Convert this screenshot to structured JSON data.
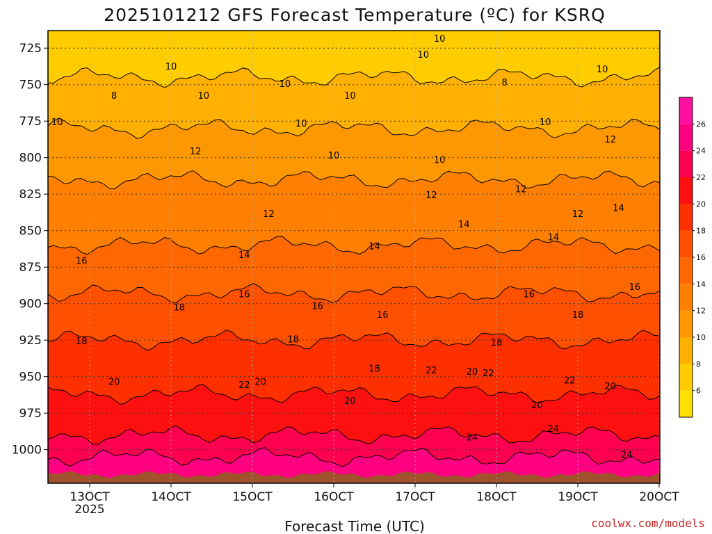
{
  "chart_data": {
    "type": "heatmap",
    "title": "2025101212 GFS Forecast Temperature (ºC) for KSRQ",
    "xlabel": "Forecast Time (UTC)",
    "ylabel": "",
    "x_ticks": [
      "13OCT",
      "14OCT",
      "15OCT",
      "16OCT",
      "17OCT",
      "18OCT",
      "19OCT",
      "20OCT"
    ],
    "x_year_label": "2025",
    "y_ticks": [
      725,
      750,
      775,
      800,
      825,
      850,
      875,
      900,
      925,
      950,
      975,
      1000
    ],
    "y_range_hpa": [
      713,
      1023
    ],
    "y_scale": "pressure (decreasing upward)",
    "grid": "on (dotted)",
    "colorbar": {
      "placement": "right",
      "tick_labels": [
        "6",
        "8",
        "10",
        "12",
        "14",
        "16",
        "18",
        "20",
        "22",
        "24",
        "26"
      ],
      "levels": [
        4,
        6,
        8,
        10,
        12,
        14,
        16,
        18,
        20,
        22,
        24,
        26,
        28
      ],
      "colors": [
        "#ffe000",
        "#ffcc00",
        "#ffb000",
        "#ff9800",
        "#ff8000",
        "#ff6800",
        "#ff5000",
        "#ff3000",
        "#ff1010",
        "#ff0050",
        "#ff0080",
        "#ff10a0"
      ]
    },
    "contour_levels": [
      8,
      10,
      12,
      14,
      16,
      18,
      20,
      22,
      24
    ],
    "approx_level_pressure_hpa": [
      {
        "temperature_c": 8,
        "pressure_hpa": 745
      },
      {
        "temperature_c": 10,
        "pressure_hpa": 780
      },
      {
        "temperature_c": 12,
        "pressure_hpa": 815
      },
      {
        "temperature_c": 14,
        "pressure_hpa": 860
      },
      {
        "temperature_c": 16,
        "pressure_hpa": 893
      },
      {
        "temperature_c": 18,
        "pressure_hpa": 925
      },
      {
        "temperature_c": 20,
        "pressure_hpa": 962
      },
      {
        "temperature_c": 22,
        "pressure_hpa": 990
      },
      {
        "temperature_c": 24,
        "pressure_hpa": 1005
      }
    ],
    "contour_labels": [
      {
        "text": "10",
        "pos": [
          1,
          738
        ]
      },
      {
        "text": "8",
        "pos": [
          0.3,
          758
        ]
      },
      {
        "text": "10",
        "pos": [
          1.4,
          758
        ]
      },
      {
        "text": "10",
        "pos": [
          -0.4,
          776
        ]
      },
      {
        "text": "10",
        "pos": [
          2.4,
          750
        ]
      },
      {
        "text": "10",
        "pos": [
          3.2,
          758
        ]
      },
      {
        "text": "10",
        "pos": [
          2.6,
          777
        ]
      },
      {
        "text": "10",
        "pos": [
          4.3,
          719
        ]
      },
      {
        "text": "10",
        "pos": [
          4.1,
          730
        ]
      },
      {
        "text": "8",
        "pos": [
          5.1,
          749
        ]
      },
      {
        "text": "10",
        "pos": [
          6.3,
          740
        ]
      },
      {
        "text": "10",
        "pos": [
          5.6,
          776
        ]
      },
      {
        "text": "12",
        "pos": [
          6.4,
          788
        ]
      },
      {
        "text": "12",
        "pos": [
          1.3,
          796
        ]
      },
      {
        "text": "10",
        "pos": [
          3.0,
          799
        ]
      },
      {
        "text": "10",
        "pos": [
          4.3,
          802
        ]
      },
      {
        "text": "12",
        "pos": [
          4.2,
          826
        ]
      },
      {
        "text": "12",
        "pos": [
          5.3,
          822
        ]
      },
      {
        "text": "12",
        "pos": [
          2.2,
          839
        ]
      },
      {
        "text": "12",
        "pos": [
          6.0,
          839
        ]
      },
      {
        "text": "14",
        "pos": [
          6.5,
          835
        ]
      },
      {
        "text": "14",
        "pos": [
          4.6,
          846
        ]
      },
      {
        "text": "14",
        "pos": [
          3.5,
          861
        ]
      },
      {
        "text": "14",
        "pos": [
          5.7,
          855
        ]
      },
      {
        "text": "14",
        "pos": [
          1.9,
          867
        ]
      },
      {
        "text": "16",
        "pos": [
          -0.1,
          871
        ]
      },
      {
        "text": "16",
        "pos": [
          1.9,
          894
        ]
      },
      {
        "text": "16",
        "pos": [
          2.8,
          902
        ]
      },
      {
        "text": "16",
        "pos": [
          3.6,
          908
        ]
      },
      {
        "text": "16",
        "pos": [
          5.4,
          894
        ]
      },
      {
        "text": "16",
        "pos": [
          6.7,
          889
        ]
      },
      {
        "text": "18",
        "pos": [
          1.1,
          903
        ]
      },
      {
        "text": "18",
        "pos": [
          -0.1,
          926
        ]
      },
      {
        "text": "18",
        "pos": [
          2.5,
          925
        ]
      },
      {
        "text": "18",
        "pos": [
          5.0,
          927
        ]
      },
      {
        "text": "18",
        "pos": [
          6.0,
          908
        ]
      },
      {
        "text": "18",
        "pos": [
          3.5,
          945
        ]
      },
      {
        "text": "20",
        "pos": [
          0.3,
          954
        ]
      },
      {
        "text": "22",
        "pos": [
          1.9,
          956
        ]
      },
      {
        "text": "20",
        "pos": [
          2.1,
          954
        ]
      },
      {
        "text": "20",
        "pos": [
          3.2,
          967
        ]
      },
      {
        "text": "22",
        "pos": [
          4.2,
          946
        ]
      },
      {
        "text": "20",
        "pos": [
          4.7,
          947
        ]
      },
      {
        "text": "22",
        "pos": [
          4.9,
          948
        ]
      },
      {
        "text": "22",
        "pos": [
          5.9,
          953
        ]
      },
      {
        "text": "20",
        "pos": [
          6.4,
          957
        ]
      },
      {
        "text": "20",
        "pos": [
          5.5,
          970
        ]
      },
      {
        "text": "24",
        "pos": [
          4.7,
          992
        ]
      },
      {
        "text": "24",
        "pos": [
          5.7,
          986
        ]
      },
      {
        "text": "24",
        "pos": [
          6.6,
          1004
        ]
      }
    ]
  },
  "credit": "coolwx.com/models"
}
